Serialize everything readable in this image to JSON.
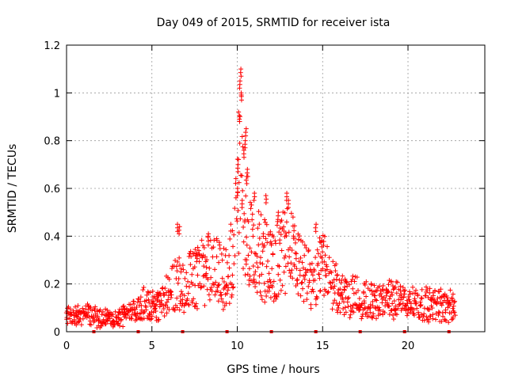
{
  "chart_data": {
    "type": "scatter",
    "title": "Day 049 of 2015, SRMTID for receiver ista",
    "xlabel": "GPS time / hours",
    "ylabel": "SRMTID / TECUs",
    "xlim": [
      0,
      24.5
    ],
    "ylim": [
      0,
      1.2
    ],
    "xticks": [
      0,
      5,
      10,
      15,
      20
    ],
    "xtick_labels": [
      "0",
      "5",
      "10",
      "15",
      "20"
    ],
    "yticks": [
      0,
      0.2,
      0.4,
      0.6,
      0.8,
      1.0,
      1.2
    ],
    "ytick_labels": [
      "0",
      "0.2",
      "0.4",
      "0.6",
      "0.8",
      "1",
      "1.2"
    ],
    "grid": true,
    "marker": "+",
    "series": [
      {
        "name": "SRMTID",
        "color": "#ff0000",
        "profile": {
          "x": [
            0,
            1,
            2,
            3,
            4,
            4.5,
            5,
            5.5,
            6,
            6.5,
            7,
            7.5,
            8,
            8.5,
            9,
            9.5,
            10,
            10.2,
            10.5,
            11,
            11.5,
            12,
            12.5,
            13,
            13.5,
            14,
            14.5,
            15,
            15.5,
            16,
            16.5,
            17,
            17.5,
            18,
            18.5,
            19,
            19.5,
            20,
            20.5,
            21,
            21.5,
            22,
            22.5,
            22.8
          ],
          "y": [
            0.06,
            0.07,
            0.06,
            0.05,
            0.08,
            0.13,
            0.1,
            0.11,
            0.16,
            0.2,
            0.2,
            0.22,
            0.25,
            0.27,
            0.23,
            0.22,
            0.45,
            0.7,
            0.4,
            0.33,
            0.3,
            0.26,
            0.3,
            0.33,
            0.28,
            0.22,
            0.2,
            0.27,
            0.2,
            0.16,
            0.14,
            0.15,
            0.13,
            0.12,
            0.12,
            0.13,
            0.13,
            0.12,
            0.12,
            0.11,
            0.11,
            0.11,
            0.1,
            0.1
          ]
        },
        "peaks": [
          {
            "x": 10.2,
            "y": 1.1
          },
          {
            "x": 10.15,
            "y": 1.05
          },
          {
            "x": 10.25,
            "y": 1.0
          },
          {
            "x": 10.1,
            "y": 0.92
          },
          {
            "x": 10.5,
            "y": 0.85
          },
          {
            "x": 10.45,
            "y": 0.8
          },
          {
            "x": 10.4,
            "y": 0.76
          },
          {
            "x": 10.05,
            "y": 0.7
          },
          {
            "x": 10.6,
            "y": 0.68
          },
          {
            "x": 10.55,
            "y": 0.65
          },
          {
            "x": 10.0,
            "y": 0.6
          },
          {
            "x": 10.3,
            "y": 0.55
          },
          {
            "x": 11.0,
            "y": 0.58
          },
          {
            "x": 11.7,
            "y": 0.57
          },
          {
            "x": 12.9,
            "y": 0.58
          },
          {
            "x": 13.0,
            "y": 0.55
          },
          {
            "x": 6.5,
            "y": 0.45
          },
          {
            "x": 6.6,
            "y": 0.44
          },
          {
            "x": 8.3,
            "y": 0.41
          },
          {
            "x": 14.6,
            "y": 0.45
          },
          {
            "x": 12.4,
            "y": 0.5
          }
        ]
      }
    ],
    "ground_markers_x": [
      1.6,
      4.2,
      6.8,
      9.4,
      12.0,
      14.6,
      17.2,
      19.8,
      22.4
    ]
  }
}
